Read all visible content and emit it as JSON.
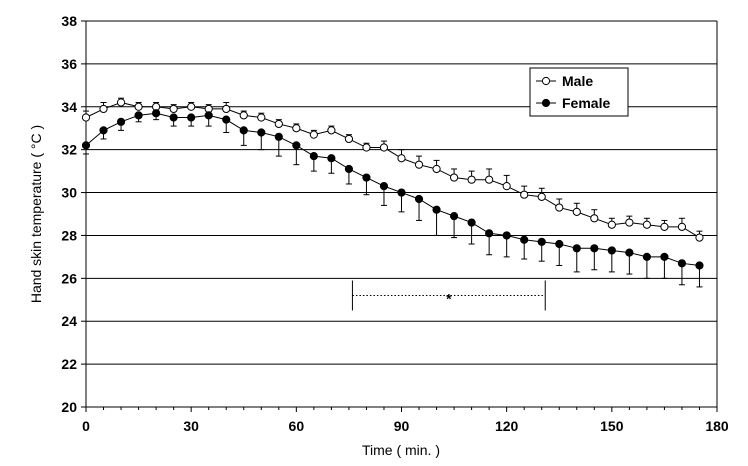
{
  "chart_data": {
    "type": "line",
    "title": "",
    "xlabel": "Time ( min. )",
    "ylabel": "Hand skin temperature ( °C )",
    "xlim": [
      0,
      180
    ],
    "ylim": [
      20,
      38
    ],
    "xticks": [
      0,
      30,
      60,
      90,
      120,
      150,
      180
    ],
    "yticks": [
      20,
      22,
      24,
      26,
      28,
      30,
      32,
      34,
      36,
      38
    ],
    "legend_position": "top-right",
    "x": [
      0,
      5,
      10,
      15,
      20,
      25,
      30,
      35,
      40,
      45,
      50,
      55,
      60,
      65,
      70,
      75,
      80,
      85,
      90,
      95,
      100,
      105,
      110,
      115,
      120,
      125,
      130,
      135,
      140,
      145,
      150,
      155,
      160,
      165,
      170,
      175
    ],
    "series": [
      {
        "name": "Male",
        "marker": "open-circle",
        "values": [
          33.5,
          33.9,
          34.2,
          34.0,
          34.0,
          33.9,
          34.0,
          33.9,
          33.9,
          33.6,
          33.5,
          33.2,
          33.0,
          32.7,
          32.9,
          32.5,
          32.1,
          32.1,
          31.6,
          31.3,
          31.1,
          30.7,
          30.6,
          30.6,
          30.3,
          29.9,
          29.8,
          29.3,
          29.1,
          28.8,
          28.5,
          28.6,
          28.5,
          28.4,
          28.4,
          27.9
        ],
        "errors": [
          0.3,
          0.3,
          0.2,
          0.2,
          0.2,
          0.2,
          0.2,
          0.2,
          0.3,
          0.2,
          0.2,
          0.2,
          0.2,
          0.2,
          0.2,
          0.2,
          0.2,
          0.3,
          0.4,
          0.4,
          0.4,
          0.4,
          0.4,
          0.5,
          0.5,
          0.4,
          0.4,
          0.4,
          0.4,
          0.4,
          0.3,
          0.3,
          0.3,
          0.3,
          0.4,
          0.3
        ]
      },
      {
        "name": "Female",
        "marker": "filled-circle",
        "values": [
          32.2,
          32.9,
          33.3,
          33.6,
          33.7,
          33.5,
          33.5,
          33.6,
          33.4,
          32.9,
          32.8,
          32.6,
          32.2,
          31.7,
          31.6,
          31.1,
          30.7,
          30.3,
          30.0,
          29.7,
          29.2,
          28.9,
          28.6,
          28.1,
          28.0,
          27.8,
          27.7,
          27.6,
          27.4,
          27.4,
          27.3,
          27.2,
          27.0,
          27.0,
          26.7,
          26.6
        ],
        "errors": [
          0.4,
          0.4,
          0.4,
          0.3,
          0.3,
          0.4,
          0.4,
          0.5,
          0.6,
          0.7,
          0.8,
          0.9,
          0.9,
          0.7,
          0.7,
          0.7,
          0.8,
          0.9,
          0.9,
          1.0,
          1.2,
          1.0,
          1.0,
          1.0,
          1.0,
          0.9,
          0.9,
          1.0,
          1.1,
          1.0,
          1.0,
          1.0,
          1.0,
          1.0,
          1.0,
          1.0
        ]
      }
    ],
    "annotation": {
      "text": "*",
      "x_start": 76,
      "x_end": 131,
      "y": 25.2
    }
  }
}
